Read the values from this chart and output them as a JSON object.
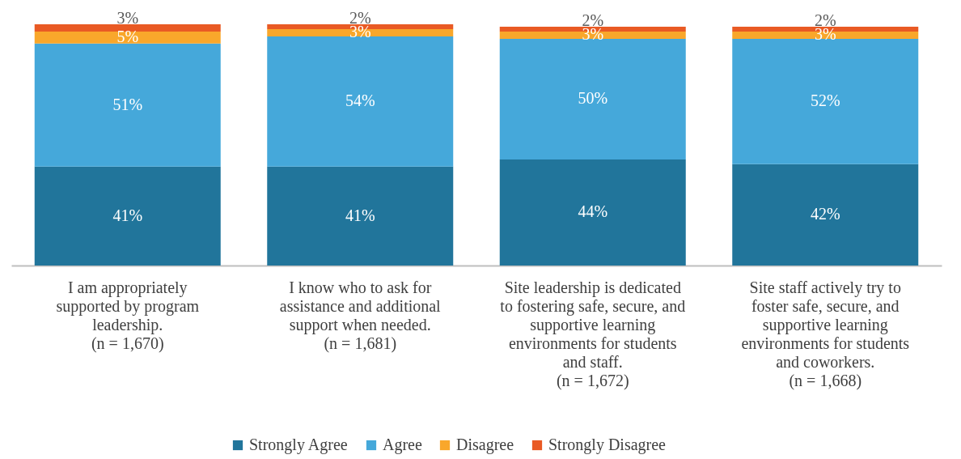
{
  "chart_data": {
    "type": "bar",
    "stacked": true,
    "legend": "bottom",
    "categories": [
      "I am appropriately\nsupported by program\nleadership.\n(n = 1,670)",
      "I know who to ask for\nassistance and additional\nsupport when needed.\n(n = 1,681)",
      "Site leadership is dedicated\nto fostering safe, secure, and\nsupportive learning\nenvironments for students\nand staff.\n(n = 1,672)",
      "Site staff actively try to\nfoster safe, secure, and\nsupportive learning\nenvironments for students\nand coworkers.\n(n = 1,668)"
    ],
    "series": [
      {
        "name": "Strongly Agree",
        "color": "#21759b",
        "values": [
          41,
          41,
          44,
          42
        ],
        "value_labels": [
          "41%",
          "41%",
          "44%",
          "42%"
        ]
      },
      {
        "name": "Agree",
        "color": "#45a8da",
        "values": [
          51,
          54,
          50,
          52
        ],
        "value_labels": [
          "51%",
          "54%",
          "50%",
          "52%"
        ]
      },
      {
        "name": "Disagree",
        "color": "#f9a72b",
        "values": [
          5,
          3,
          3,
          3
        ],
        "value_labels": [
          "5%",
          "3%",
          "3%",
          "3%"
        ]
      },
      {
        "name": "Strongly Disagree",
        "color": "#e95a24",
        "values": [
          3,
          2,
          2,
          2
        ],
        "value_labels": [
          "3%",
          "2%",
          "2%",
          "2%"
        ]
      }
    ]
  }
}
